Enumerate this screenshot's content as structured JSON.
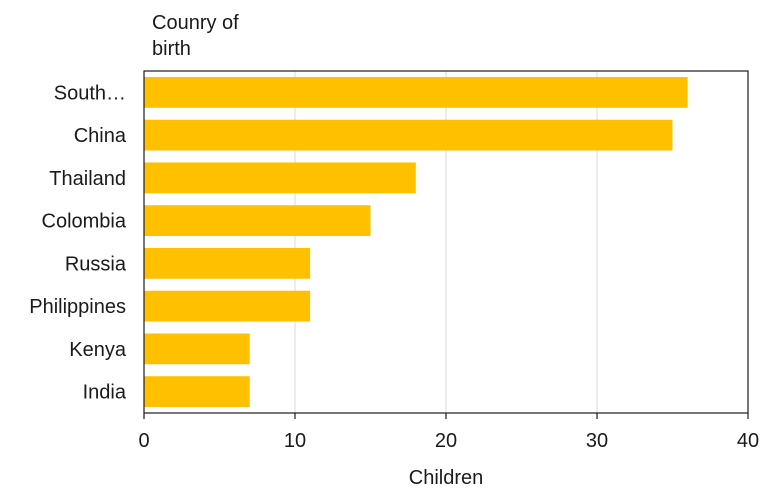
{
  "chart_data": {
    "type": "bar",
    "orientation": "horizontal",
    "title": "",
    "ylabel_lines": [
      "Counry of",
      "birth"
    ],
    "xlabel": "Children",
    "categories": [
      "South…",
      "China",
      "Thailand",
      "Colombia",
      "Russia",
      "Philippines",
      "Kenya",
      "India"
    ],
    "values": [
      36,
      35,
      18,
      15,
      11,
      11,
      7,
      7
    ],
    "xlim": [
      0,
      40
    ],
    "xticks": [
      0,
      10,
      20,
      30,
      40
    ],
    "grid": "vertical",
    "bar_color": "#FFC000",
    "gridline_color": "#d9d9d9"
  }
}
